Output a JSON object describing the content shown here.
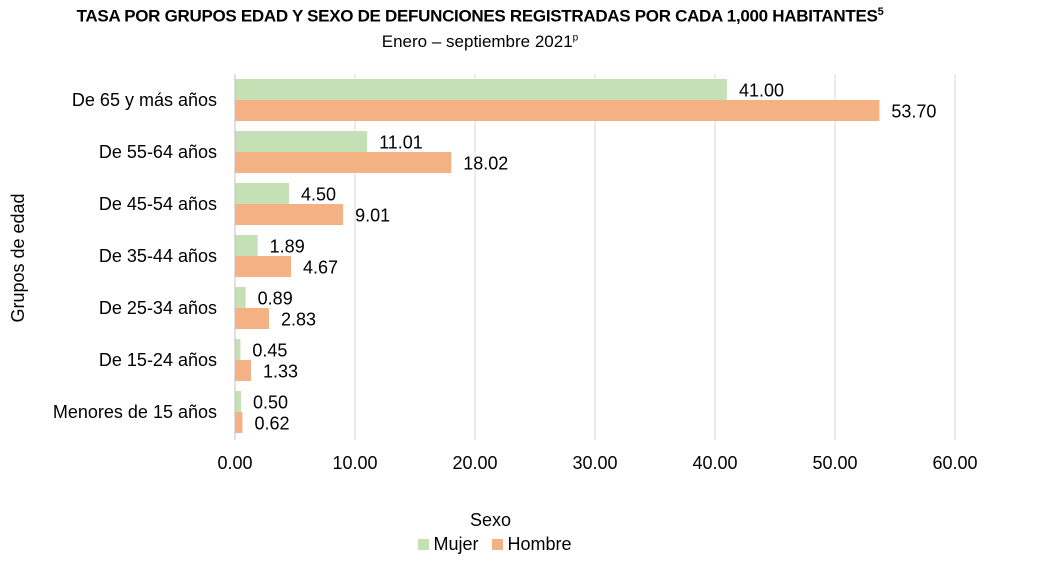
{
  "chart_data": {
    "type": "bar",
    "orientation": "horizontal",
    "title": "Tasa por grupos edad y sexo de defunciones registradas por cada 1,000 habitantes",
    "title_superscript": "5",
    "subtitle": "Enero – septiembre 2021",
    "subtitle_superscript": "p",
    "ylabel": "Grupos de edad",
    "xlabel": "",
    "legend_title": "Sexo",
    "legend_position": "bottom",
    "categories": [
      "De 65 y más años",
      "De 55-64 años",
      "De 45-54 años",
      "De 35-44 años",
      "De 25-34 años",
      "De 15-24 años",
      "Menores de 15 años"
    ],
    "series": [
      {
        "name": "Mujer",
        "color": "#c5e0b4",
        "values": [
          41.0,
          11.01,
          4.5,
          1.89,
          0.89,
          0.45,
          0.5
        ]
      },
      {
        "name": "Hombre",
        "color": "#f4b183",
        "values": [
          53.7,
          18.02,
          9.01,
          4.67,
          2.83,
          1.33,
          0.62
        ]
      }
    ],
    "xlim": [
      0,
      60
    ],
    "xticks": [
      0,
      10,
      20,
      30,
      40,
      50,
      60
    ],
    "xtick_labels": [
      "0.00",
      "10.00",
      "20.00",
      "30.00",
      "40.00",
      "50.00",
      "60.00"
    ],
    "grid": true
  }
}
